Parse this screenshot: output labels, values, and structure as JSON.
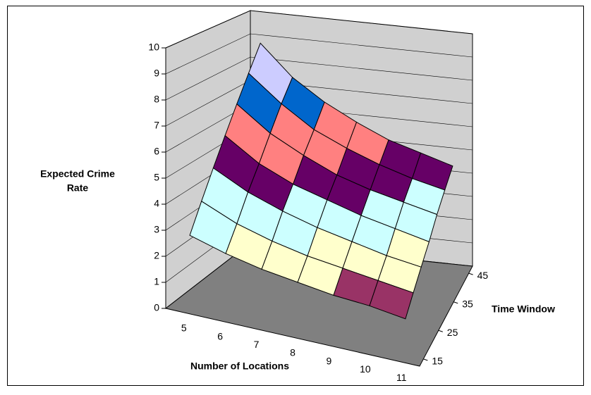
{
  "chart_data": {
    "type": "surface",
    "x_label": "Number of Locations",
    "y_label": "Time Window",
    "z_label": [
      "Expected Crime",
      "Rate"
    ],
    "x": [
      5,
      6,
      7,
      8,
      9,
      10,
      11
    ],
    "y": [
      15,
      20,
      25,
      30,
      35,
      40,
      45
    ],
    "z": [
      [
        2.8,
        2.4,
        2.1,
        1.9,
        1.7,
        1.6,
        1.4
      ],
      [
        3.8,
        3.2,
        2.8,
        2.5,
        2.3,
        2.1,
        1.9
      ],
      [
        4.8,
        4.1,
        3.6,
        3.2,
        2.9,
        2.6,
        2.4
      ],
      [
        5.8,
        4.9,
        4.3,
        3.9,
        3.5,
        3.2,
        2.9
      ],
      [
        6.8,
        5.8,
        5.1,
        4.5,
        4.1,
        3.8,
        3.5
      ],
      [
        7.8,
        6.7,
        5.8,
        5.2,
        4.7,
        4.3,
        4.0
      ],
      [
        8.8,
        7.5,
        6.6,
        5.9,
        5.3,
        4.9,
        4.5
      ]
    ],
    "yticks": [
      15,
      25,
      35,
      45
    ],
    "zlim": [
      0,
      10
    ],
    "zticks": [
      0,
      1,
      2,
      3,
      4,
      5,
      6,
      7,
      8,
      9,
      10
    ],
    "band_colors": [
      "#9999ff",
      "#993366",
      "#ffffcc",
      "#ccffff",
      "#660066",
      "#ff8080",
      "#0066cc",
      "#ccccff",
      "#000080",
      "#000080"
    ],
    "wall_color": "#d0d0d0",
    "floor_color": "#808080",
    "grid": true
  }
}
